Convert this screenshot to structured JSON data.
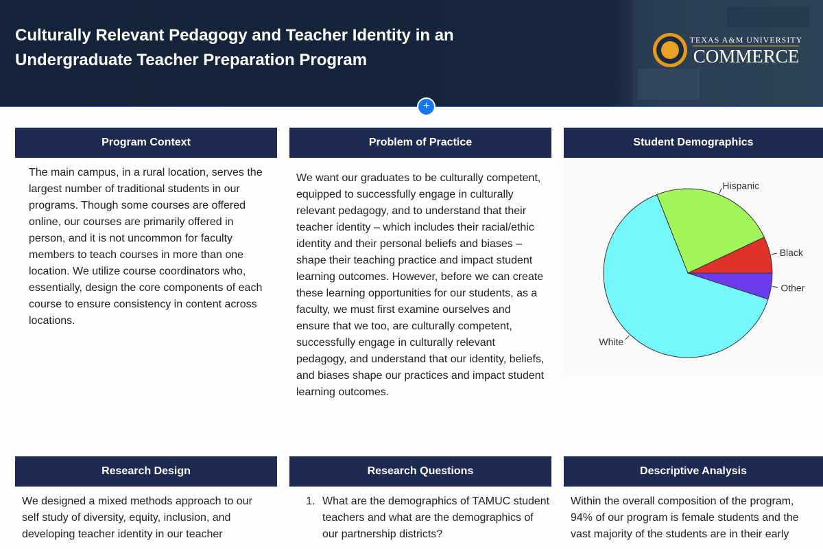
{
  "header": {
    "title_lines": [
      "Culturally Relevant Pedagogy and Teacher Identity in an",
      "Undergraduate Teacher Preparation Program"
    ],
    "logo_top": "TEXAS A&M UNIVERSITY",
    "logo_bottom": "COMMERCE"
  },
  "panels": [
    {
      "heading": "Program Context",
      "text": "The main campus, in a rural location, serves the largest number of traditional students in our programs. Though some courses are offered online, our courses are primarily offered in person, and it is not uncommon for faculty members to teach courses in more than one location. We utilize course coordinators who, essentially, design the core components of each course to ensure consistency in content across locations."
    },
    {
      "heading": "Problem of Practice",
      "text": "We want our graduates to be culturally competent, equipped to successfully engage in culturally relevant pedagogy, and to understand that their teacher identity – which includes their racial/ethic identity and their personal beliefs and biases – shape their teaching practice and impact student learning outcomes. However, before we can create these learning opportunities for our students, as a faculty, we must first examine ourselves and ensure that we too, are culturally competent, successfully engage in culturally relevant pedagogy, and understand that our identity, beliefs, and biases shape our practices and impact student learning outcomes."
    },
    {
      "heading": "Research Design",
      "text": "We designed a mixed methods approach to our self study of diversity, equity, inclusion, and developing teacher identity in our teacher"
    },
    {
      "heading": "Research Questions",
      "items": [
        "What are the demographics of TAMUC student teachers and what are the demographics of our partnership districts?"
      ]
    },
    {
      "heading": "Descriptive Analysis",
      "text": "Within the overall composition of the program, 94% of our program is female students and the vast majority of the students are in their early"
    }
  ],
  "chart_data": {
    "type": "pie",
    "title": "Student Demographics",
    "categories": [
      "Other",
      "Black",
      "Hispanic",
      "White"
    ],
    "values": [
      5,
      7,
      24,
      64
    ],
    "colors": [
      "#6b3cec",
      "#e0312b",
      "#a3f55c",
      "#74f8fb"
    ]
  }
}
